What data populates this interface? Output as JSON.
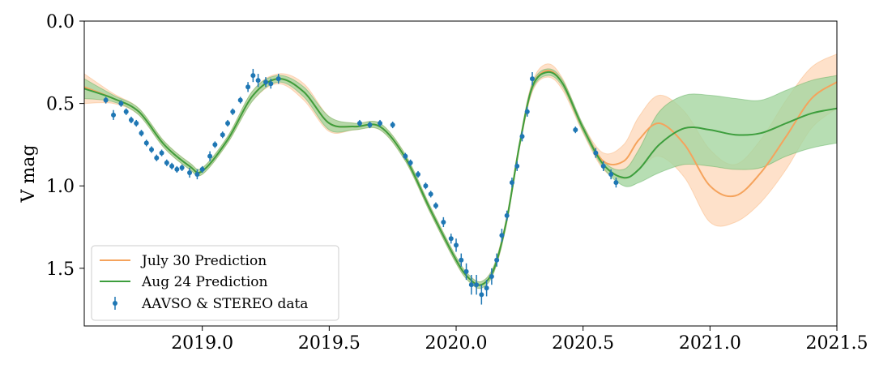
{
  "chart_data": {
    "type": "line",
    "title": "",
    "xlabel": "",
    "ylabel": "V mag",
    "xlim": [
      2018.535,
      2021.5
    ],
    "ylim": [
      0.0,
      1.85
    ],
    "y_inverted": true,
    "grid": false,
    "legend_placement": "lower-left",
    "x_ticks": [
      "2019.0",
      "2019.5",
      "2020.0",
      "2020.5",
      "2021.0",
      "2021.5"
    ],
    "y_ticks": [
      "0.0",
      "0.5",
      "1.0",
      "1.5"
    ],
    "series": [
      {
        "name": "July 30 Prediction",
        "color": "#f5a35c",
        "band_color": "#fdd7b8",
        "x": [
          2018.535,
          2018.65,
          2018.75,
          2018.85,
          2018.95,
          2019.0,
          2019.1,
          2019.2,
          2019.3,
          2019.4,
          2019.5,
          2019.6,
          2019.7,
          2019.8,
          2019.9,
          2020.0,
          2020.05,
          2020.1,
          2020.15,
          2020.2,
          2020.25,
          2020.3,
          2020.36,
          2020.42,
          2020.5,
          2020.58,
          2020.66,
          2020.72,
          2020.8,
          2020.9,
          2021.0,
          2021.1,
          2021.2,
          2021.3,
          2021.4,
          2021.5
        ],
        "y": [
          0.4,
          0.47,
          0.55,
          0.75,
          0.88,
          0.91,
          0.72,
          0.45,
          0.35,
          0.43,
          0.62,
          0.64,
          0.64,
          0.83,
          1.15,
          1.45,
          1.56,
          1.6,
          1.5,
          1.2,
          0.75,
          0.4,
          0.3,
          0.38,
          0.65,
          0.85,
          0.85,
          0.72,
          0.62,
          0.75,
          1.0,
          1.06,
          0.92,
          0.7,
          0.47,
          0.37
        ],
        "lower": [
          0.32,
          0.44,
          0.53,
          0.73,
          0.86,
          0.89,
          0.7,
          0.42,
          0.32,
          0.38,
          0.58,
          0.62,
          0.62,
          0.81,
          1.13,
          1.43,
          1.54,
          1.58,
          1.48,
          1.18,
          0.73,
          0.37,
          0.26,
          0.35,
          0.63,
          0.8,
          0.75,
          0.58,
          0.45,
          0.55,
          0.78,
          0.87,
          0.72,
          0.48,
          0.28,
          0.2
        ],
        "upper": [
          0.5,
          0.5,
          0.57,
          0.77,
          0.9,
          0.93,
          0.74,
          0.48,
          0.38,
          0.48,
          0.67,
          0.66,
          0.66,
          0.85,
          1.17,
          1.47,
          1.58,
          1.62,
          1.52,
          1.22,
          0.77,
          0.43,
          0.34,
          0.42,
          0.68,
          0.9,
          0.96,
          0.9,
          0.82,
          0.95,
          1.22,
          1.22,
          1.1,
          0.9,
          0.65,
          0.53
        ]
      },
      {
        "name": "Aug 24 Prediction",
        "color": "#3d9e3d",
        "band_color": "#a5d6a0",
        "x": [
          2018.535,
          2018.65,
          2018.75,
          2018.85,
          2018.95,
          2019.0,
          2019.1,
          2019.2,
          2019.3,
          2019.4,
          2019.5,
          2019.6,
          2019.7,
          2019.8,
          2019.9,
          2020.0,
          2020.05,
          2020.1,
          2020.15,
          2020.2,
          2020.25,
          2020.3,
          2020.36,
          2020.42,
          2020.5,
          2020.58,
          2020.66,
          2020.72,
          2020.8,
          2020.9,
          2021.0,
          2021.1,
          2021.2,
          2021.3,
          2021.4,
          2021.5
        ],
        "y": [
          0.41,
          0.47,
          0.55,
          0.75,
          0.88,
          0.91,
          0.72,
          0.45,
          0.35,
          0.43,
          0.62,
          0.64,
          0.64,
          0.83,
          1.15,
          1.45,
          1.56,
          1.6,
          1.5,
          1.2,
          0.75,
          0.4,
          0.31,
          0.38,
          0.65,
          0.87,
          0.95,
          0.9,
          0.75,
          0.65,
          0.66,
          0.69,
          0.68,
          0.62,
          0.56,
          0.53
        ],
        "lower": [
          0.35,
          0.45,
          0.53,
          0.73,
          0.86,
          0.89,
          0.7,
          0.42,
          0.33,
          0.4,
          0.58,
          0.62,
          0.62,
          0.81,
          1.13,
          1.43,
          1.54,
          1.58,
          1.48,
          1.18,
          0.73,
          0.38,
          0.29,
          0.36,
          0.63,
          0.85,
          0.9,
          0.78,
          0.55,
          0.45,
          0.45,
          0.47,
          0.48,
          0.42,
          0.36,
          0.33
        ],
        "upper": [
          0.47,
          0.49,
          0.57,
          0.77,
          0.9,
          0.93,
          0.74,
          0.48,
          0.37,
          0.46,
          0.66,
          0.66,
          0.66,
          0.85,
          1.17,
          1.47,
          1.58,
          1.62,
          1.52,
          1.22,
          0.77,
          0.42,
          0.33,
          0.4,
          0.67,
          0.89,
          1.0,
          0.98,
          0.92,
          0.87,
          0.88,
          0.9,
          0.89,
          0.82,
          0.77,
          0.74
        ]
      }
    ],
    "observations": {
      "name": "AAVSO & STEREO data",
      "color": "#1f77b4",
      "x": [
        2018.62,
        2018.65,
        2018.68,
        2018.7,
        2018.72,
        2018.74,
        2018.76,
        2018.78,
        2018.8,
        2018.82,
        2018.84,
        2018.86,
        2018.88,
        2018.9,
        2018.92,
        2018.95,
        2018.98,
        2019.0,
        2019.03,
        2019.05,
        2019.08,
        2019.1,
        2019.12,
        2019.15,
        2019.18,
        2019.2,
        2019.22,
        2019.25,
        2019.27,
        2019.3,
        2019.62,
        2019.66,
        2019.7,
        2019.75,
        2019.8,
        2019.82,
        2019.85,
        2019.88,
        2019.9,
        2019.92,
        2019.95,
        2019.98,
        2020.0,
        2020.02,
        2020.04,
        2020.06,
        2020.08,
        2020.1,
        2020.12,
        2020.14,
        2020.16,
        2020.18,
        2020.2,
        2020.22,
        2020.24,
        2020.26,
        2020.28,
        2020.3,
        2020.47,
        2020.55,
        2020.58,
        2020.61,
        2020.63
      ],
      "y": [
        0.48,
        0.57,
        0.5,
        0.55,
        0.6,
        0.62,
        0.68,
        0.74,
        0.78,
        0.83,
        0.8,
        0.86,
        0.88,
        0.9,
        0.89,
        0.92,
        0.93,
        0.9,
        0.82,
        0.75,
        0.69,
        0.62,
        0.55,
        0.48,
        0.4,
        0.33,
        0.36,
        0.37,
        0.38,
        0.35,
        0.62,
        0.63,
        0.62,
        0.63,
        0.82,
        0.86,
        0.93,
        1.0,
        1.05,
        1.12,
        1.22,
        1.32,
        1.36,
        1.45,
        1.52,
        1.6,
        1.6,
        1.66,
        1.62,
        1.55,
        1.45,
        1.3,
        1.18,
        0.98,
        0.88,
        0.7,
        0.55,
        0.35,
        0.66,
        0.8,
        0.88,
        0.93,
        0.98
      ],
      "yerr": [
        0.02,
        0.03,
        0.02,
        0.02,
        0.02,
        0.02,
        0.02,
        0.02,
        0.02,
        0.02,
        0.02,
        0.02,
        0.02,
        0.02,
        0.02,
        0.03,
        0.03,
        0.02,
        0.03,
        0.02,
        0.02,
        0.02,
        0.02,
        0.02,
        0.03,
        0.04,
        0.04,
        0.03,
        0.03,
        0.03,
        0.02,
        0.02,
        0.02,
        0.02,
        0.02,
        0.02,
        0.02,
        0.02,
        0.02,
        0.02,
        0.03,
        0.03,
        0.04,
        0.04,
        0.05,
        0.06,
        0.06,
        0.06,
        0.05,
        0.05,
        0.04,
        0.04,
        0.03,
        0.03,
        0.03,
        0.03,
        0.03,
        0.04,
        0.02,
        0.03,
        0.03,
        0.03,
        0.03
      ]
    }
  }
}
